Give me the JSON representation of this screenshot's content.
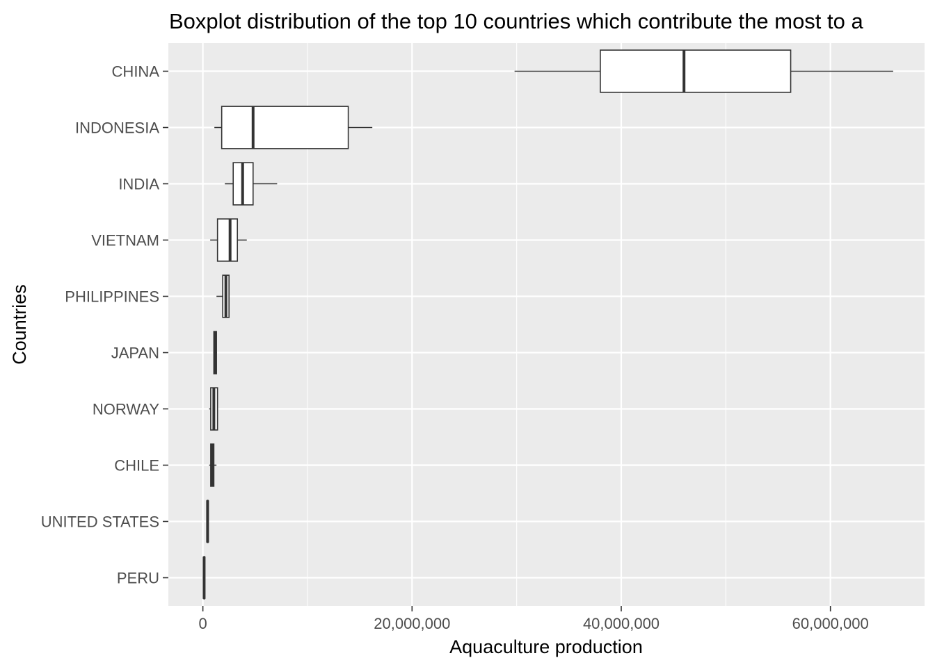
{
  "chart_data": {
    "type": "boxplot",
    "title": "Boxplot distribution of the top 10 countries which contribute the most to a",
    "xlabel": "Aquaculture production",
    "ylabel": "Countries",
    "xlim": [
      -3300000,
      69000000
    ],
    "x_ticks": [
      0,
      20000000,
      40000000,
      60000000
    ],
    "x_tick_labels": [
      "0",
      "20,000,000",
      "40,000,000",
      "60,000,000"
    ],
    "grid": true,
    "legend": "none",
    "colors": {
      "panel": "#ebebeb",
      "grid": "#ffffff",
      "box_fill": "#ffffff",
      "box_stroke": "#333333",
      "tick_text": "#4d4d4d"
    },
    "categories": [
      "CHINA",
      "INDONESIA",
      "INDIA",
      "VIETNAM",
      "PHILIPPINES",
      "JAPAN",
      "NORWAY",
      "CHILE",
      "UNITED STATES",
      "PERU"
    ],
    "boxes": [
      {
        "category": "CHINA",
        "min": 29800000,
        "q1": 38000000,
        "median": 46000000,
        "q3": 56200000,
        "max": 66000000
      },
      {
        "category": "INDONESIA",
        "min": 1100000,
        "q1": 1800000,
        "median": 4800000,
        "q3": 13900000,
        "max": 16200000
      },
      {
        "category": "INDIA",
        "min": 2100000,
        "q1": 2900000,
        "median": 3800000,
        "q3": 4800000,
        "max": 7100000
      },
      {
        "category": "VIETNAM",
        "min": 700000,
        "q1": 1400000,
        "median": 2600000,
        "q3": 3300000,
        "max": 4200000
      },
      {
        "category": "PHILIPPINES",
        "min": 1300000,
        "q1": 1900000,
        "median": 2200000,
        "q3": 2500000,
        "max": 2500000
      },
      {
        "category": "JAPAN",
        "min": 1000000,
        "q1": 1050000,
        "median": 1150000,
        "q3": 1300000,
        "max": 1350000
      },
      {
        "category": "NORWAY",
        "min": 600000,
        "q1": 750000,
        "median": 1050000,
        "q3": 1400000,
        "max": 1450000
      },
      {
        "category": "CHILE",
        "min": 600000,
        "q1": 750000,
        "median": 900000,
        "q3": 1050000,
        "max": 1300000
      },
      {
        "category": "UNITED STATES",
        "min": 400000,
        "q1": 420000,
        "median": 450000,
        "q3": 480000,
        "max": 500000
      },
      {
        "category": "PERU",
        "min": 80000,
        "q1": 100000,
        "median": 120000,
        "q3": 150000,
        "max": 170000
      }
    ]
  }
}
